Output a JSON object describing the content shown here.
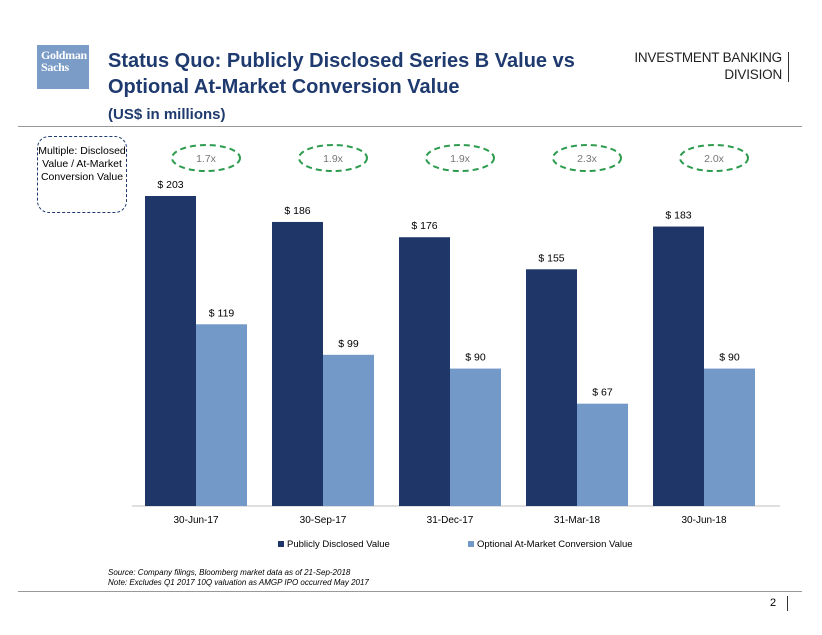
{
  "header": {
    "logo_line1": "Goldman",
    "logo_line2": "Sachs",
    "title": "Status Quo: Publicly Disclosed Series B Value vs Optional At-Market Conversion Value",
    "subtitle": "(US$ in millions)",
    "division_line1": "INVESTMENT BANKING",
    "division_line2": "DIVISION"
  },
  "multiple_label": "Multiple: Disclosed Value / At-Market Conversion Value",
  "chart_data": {
    "type": "bar",
    "categories": [
      "30-Jun-17",
      "30-Sep-17",
      "31-Dec-17",
      "31-Mar-18",
      "30-Jun-18"
    ],
    "series": [
      {
        "name": "Publicly Disclosed Value",
        "values": [
          203,
          186,
          176,
          155,
          183
        ],
        "color": "#1f3668"
      },
      {
        "name": "Optional At-Market Conversion Value",
        "values": [
          119,
          99,
          90,
          67,
          90
        ],
        "color": "#7399c9"
      }
    ],
    "data_labels": [
      [
        "$ 203",
        "$ 186",
        "$ 176",
        "$ 155",
        "$ 183"
      ],
      [
        "$ 119",
        "$ 99",
        "$ 90",
        "$ 67",
        "$ 90"
      ]
    ],
    "multiples": [
      "1.7x",
      "1.9x",
      "1.9x",
      "2.3x",
      "2.0x"
    ],
    "multiple_color": "#2e9c4e",
    "ylim": [
      0,
      210
    ],
    "legend_position": "bottom",
    "title": "",
    "xlabel": "",
    "ylabel": ""
  },
  "footer": {
    "source": "Source: Company filings, Bloomberg market data as of 21-Sep-2018",
    "note": "Note: Excludes Q1 2017 10Q valuation as AMGP IPO occurred May 2017",
    "page_number": "2"
  }
}
